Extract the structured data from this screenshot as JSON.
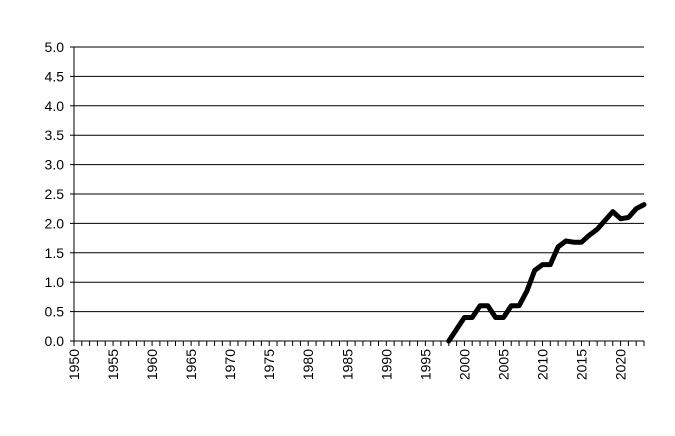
{
  "chart_data": {
    "type": "line",
    "title": "",
    "xlabel": "",
    "ylabel": "",
    "xlim": [
      1950,
      2023
    ],
    "ylim": [
      0,
      5
    ],
    "x_ticks": [
      1950,
      1955,
      1960,
      1965,
      1970,
      1975,
      1980,
      1985,
      1990,
      1995,
      2000,
      2005,
      2010,
      2015,
      2020
    ],
    "y_ticks": [
      "0.0",
      "0.5",
      "1.0",
      "1.5",
      "2.0",
      "2.5",
      "3.0",
      "3.5",
      "4.0",
      "4.5",
      "5.0"
    ],
    "grid": "horizontal",
    "legend": "none",
    "line_color": "#000000",
    "series": [
      {
        "x": [
          1998,
          1999,
          2000,
          2001,
          2002,
          2003,
          2004,
          2005,
          2006,
          2007,
          2008,
          2009,
          2010,
          2011,
          2012,
          2013,
          2014,
          2015,
          2016,
          2017,
          2018,
          2019,
          2020,
          2021,
          2022,
          2023
        ],
        "values": [
          0.0,
          0.2,
          0.4,
          0.4,
          0.6,
          0.6,
          0.4,
          0.4,
          0.6,
          0.6,
          0.85,
          1.2,
          1.3,
          1.3,
          1.6,
          1.7,
          1.68,
          1.68,
          1.8,
          1.9,
          2.05,
          2.2,
          2.08,
          2.1,
          2.25,
          2.32
        ]
      }
    ]
  }
}
